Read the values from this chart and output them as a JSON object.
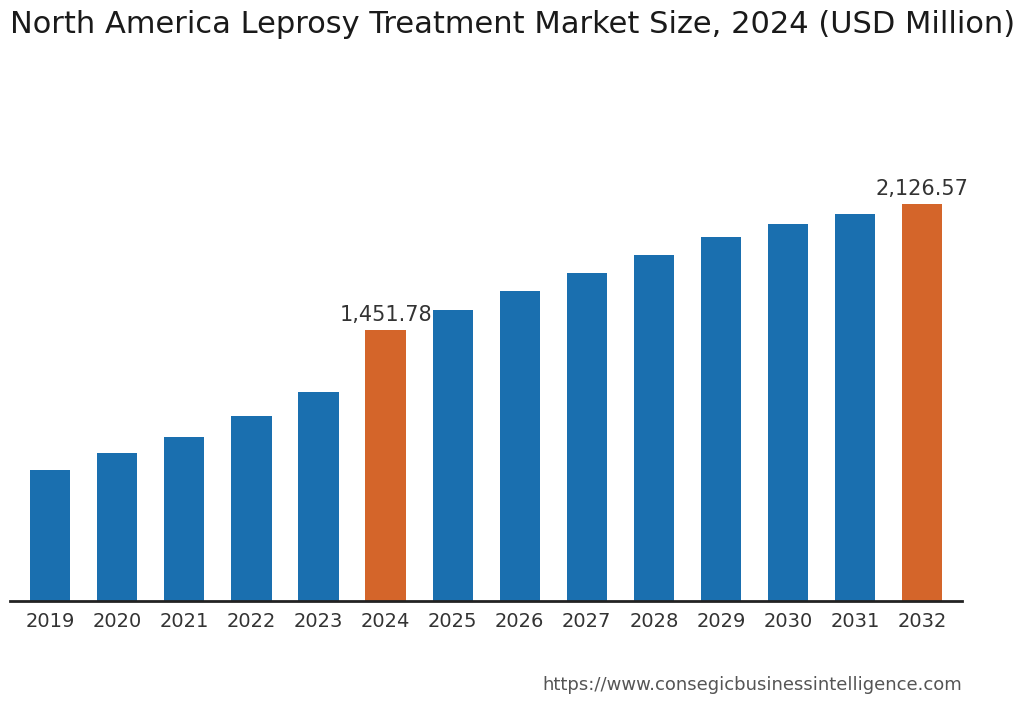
{
  "title": "North America Leprosy Treatment Market Size, 2024 (USD Million)",
  "categories": [
    "2019",
    "2020",
    "2021",
    "2022",
    "2023",
    "2024",
    "2025",
    "2026",
    "2027",
    "2028",
    "2029",
    "2030",
    "2031",
    "2032"
  ],
  "values": [
    700,
    790,
    880,
    990,
    1120,
    1451.78,
    1560,
    1660,
    1760,
    1855,
    1950,
    2020,
    2075,
    2126.57
  ],
  "bar_colors": [
    "#1a6faf",
    "#1a6faf",
    "#1a6faf",
    "#1a6faf",
    "#1a6faf",
    "#d4652a",
    "#1a6faf",
    "#1a6faf",
    "#1a6faf",
    "#1a6faf",
    "#1a6faf",
    "#1a6faf",
    "#1a6faf",
    "#d4652a"
  ],
  "highlight_labels": {
    "2024": "1,451.78",
    "2032": "2,126.57"
  },
  "url": "https://www.consegicbusinessintelligence.com",
  "background_color": "#ffffff",
  "title_fontsize": 22,
  "tick_fontsize": 14,
  "label_fontsize": 15,
  "url_fontsize": 13,
  "ylim": [
    0,
    2800
  ],
  "bar_width": 0.6
}
